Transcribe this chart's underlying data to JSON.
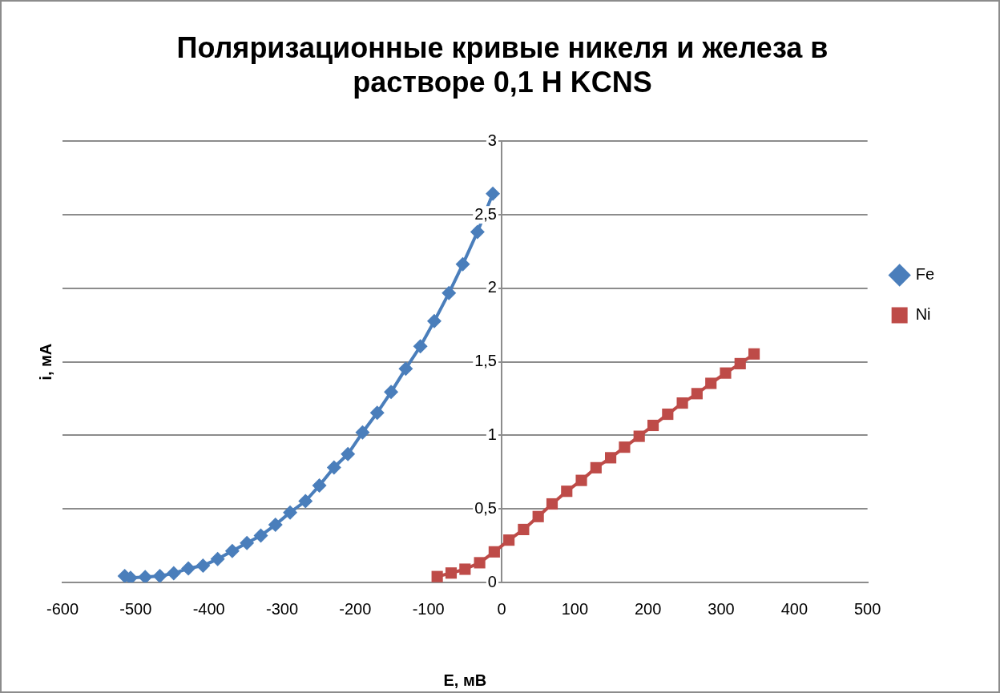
{
  "chart_data": {
    "type": "line",
    "title": "Поляризационные кривые никеля и железа в растворе 0,1 Н KCNS",
    "xlabel": "E, мВ",
    "ylabel": "i, мА",
    "xlim": [
      -600,
      500
    ],
    "xticks": [
      -600,
      -500,
      -400,
      -300,
      -200,
      -100,
      0,
      100,
      200,
      300,
      400,
      500
    ],
    "ylim": [
      0,
      3
    ],
    "yticks": [
      0,
      {
        "value": 0.5,
        "label": "0,5"
      },
      1,
      {
        "value": 1.5,
        "label": "1,5"
      },
      2,
      {
        "value": 2.5,
        "label": "2,5"
      },
      3
    ],
    "grid": "y",
    "legend": "right",
    "line_style": "solid",
    "series": [
      {
        "name": "Fe",
        "color": "#4a7ebb",
        "marker": "diamond",
        "x": [
          -515,
          -507,
          -487,
          -467,
          -448,
          -428,
          -408,
          -388,
          -368,
          -348,
          -329,
          -309,
          -289,
          -268,
          -249,
          -229,
          -210,
          -190,
          -170,
          -151,
          -131,
          -111,
          -92,
          -72,
          -53,
          -33,
          -12
        ],
        "values": [
          0.044,
          0.031,
          0.037,
          0.044,
          0.062,
          0.095,
          0.114,
          0.159,
          0.214,
          0.269,
          0.319,
          0.392,
          0.476,
          0.553,
          0.659,
          0.782,
          0.873,
          1.02,
          1.154,
          1.295,
          1.454,
          1.606,
          1.777,
          1.968,
          2.164,
          2.384,
          2.644
        ]
      },
      {
        "name": "Ni",
        "color": "#be4b48",
        "marker": "square",
        "x": [
          -88,
          -69,
          -50,
          -30,
          -10,
          10,
          30,
          50,
          69,
          89,
          109,
          129,
          149,
          168,
          188,
          207,
          227,
          247,
          267,
          286,
          306,
          326,
          345
        ],
        "values": [
          0.04,
          0.064,
          0.09,
          0.134,
          0.208,
          0.288,
          0.36,
          0.448,
          0.534,
          0.62,
          0.694,
          0.78,
          0.848,
          0.92,
          0.994,
          1.068,
          1.144,
          1.22,
          1.284,
          1.354,
          1.424,
          1.488,
          1.554
        ]
      }
    ]
  }
}
